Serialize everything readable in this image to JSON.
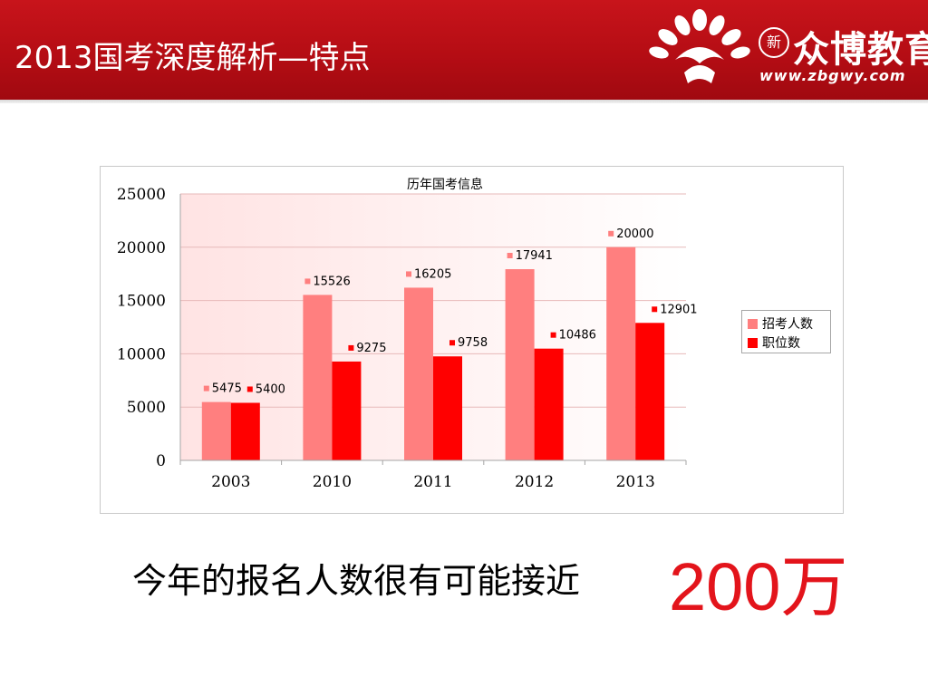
{
  "slide": {
    "title": "2013国考深度解析—特点",
    "logo": {
      "badge": "新",
      "name": "众博教育",
      "url": "www.zbgwy.com"
    },
    "bottom_text": "今年的报名人数很有可能接近",
    "bottom_highlight": "200万",
    "colors": {
      "header": "#b50d14",
      "highlight": "#e3141b"
    }
  },
  "chart_data": {
    "type": "bar",
    "title": "历年国考信息",
    "xlabel": "",
    "ylabel": "",
    "categories": [
      "2003",
      "2010",
      "2011",
      "2012",
      "2013"
    ],
    "series": [
      {
        "name": "招考人数",
        "color": "#ff7f7f",
        "values": [
          5475,
          15526,
          16205,
          17941,
          20000
        ]
      },
      {
        "name": "职位数",
        "color": "#ff0000",
        "values": [
          5400,
          9275,
          9758,
          10486,
          12901
        ]
      }
    ],
    "ylim": [
      0,
      25000
    ],
    "yticks": [
      0,
      5000,
      10000,
      15000,
      20000,
      25000
    ],
    "grid": true,
    "legend": "right",
    "data_labels": true
  }
}
